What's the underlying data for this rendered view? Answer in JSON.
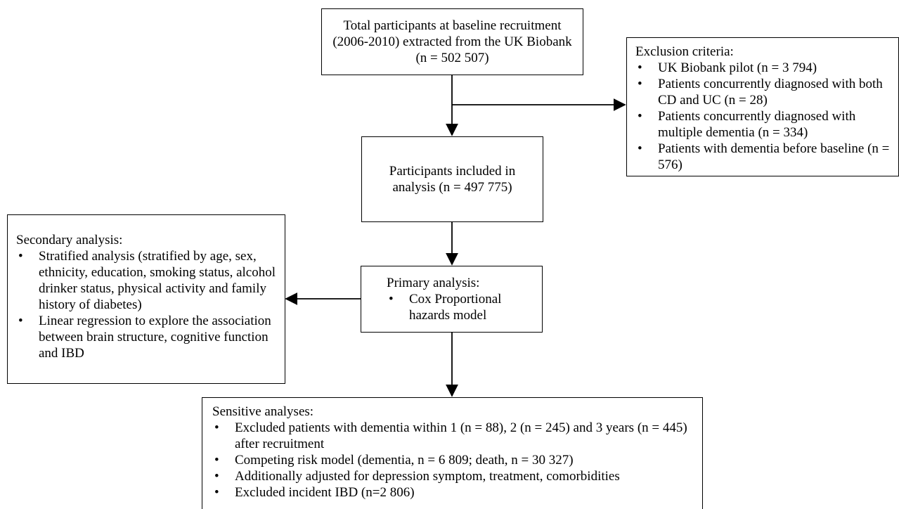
{
  "nodes": [
    {
      "id": "baseline",
      "text": "Total participants at baseline recruitment (2006-2010) extracted from the UK Biobank (n = 502 507)"
    },
    {
      "id": "exclusion",
      "title": "Exclusion criteria:",
      "items": [
        "UK Biobank pilot (n = 3 794)",
        "Patients concurrently diagnosed with both CD and UC (n = 28)",
        "Patients concurrently diagnosed with multiple dementia (n = 334)",
        "Patients with dementia before baseline (n = 576)"
      ]
    },
    {
      "id": "included",
      "text": "Participants included in analysis (n = 497 775)"
    },
    {
      "id": "secondary",
      "title": "Secondary analysis:",
      "items": [
        "Stratified analysis (stratified by age, sex, ethnicity, education, smoking status, alcohol drinker status, physical activity and family history of diabetes)",
        "Linear regression to explore the association between brain structure, cognitive function and IBD"
      ]
    },
    {
      "id": "primary",
      "title": "Primary analysis:",
      "items": [
        "Cox Proportional hazards model"
      ]
    },
    {
      "id": "sensitive",
      "title": "Sensitive analyses:",
      "items": [
        "Excluded patients with dementia within 1 (n = 88), 2 (n = 245) and 3 years (n = 445) after recruitment",
        "Competing risk model (dementia, n = 6 809; death, n = 30 327)",
        "Additionally adjusted for depression symptom, treatment, comorbidities",
        "Excluded incident IBD (n=2 806)"
      ]
    }
  ]
}
